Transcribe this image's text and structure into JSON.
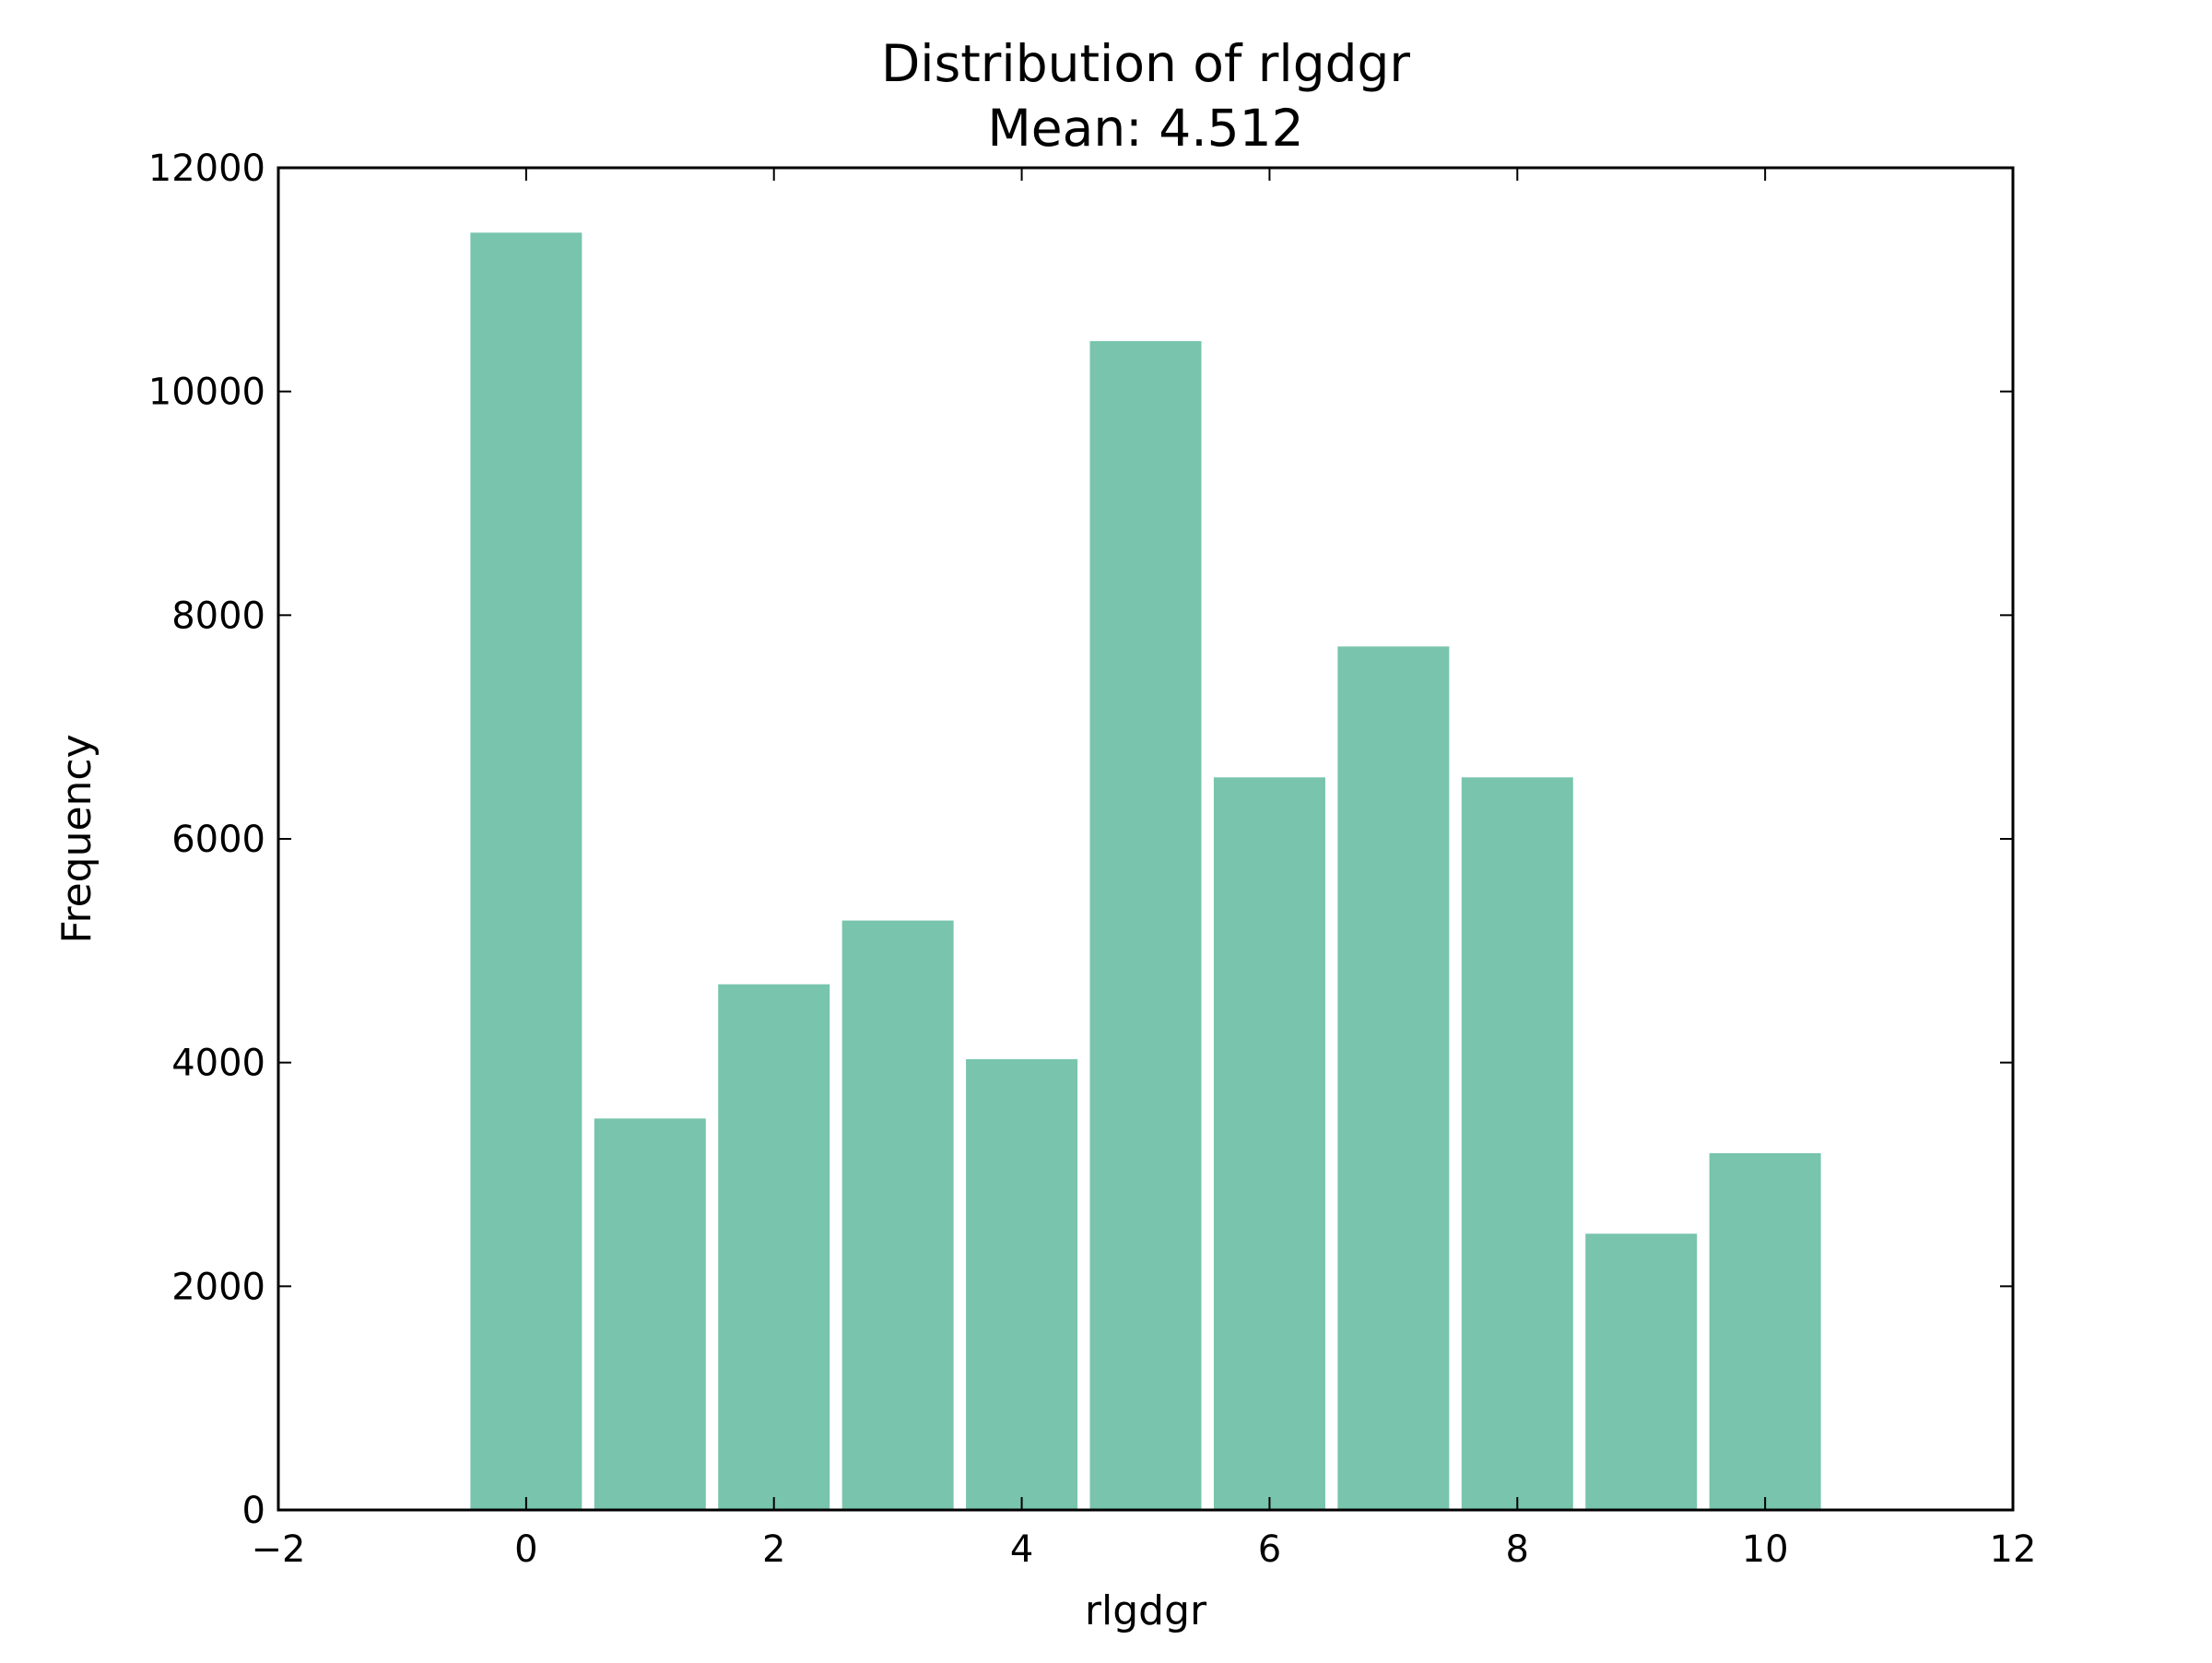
{
  "chart_data": {
    "type": "bar",
    "title": "Distribution of rlgdgr",
    "subtitle": "Mean: 4.512",
    "xlabel": "rlgdgr",
    "ylabel": "Frequency",
    "categories": [
      0,
      1,
      2,
      3,
      4,
      5,
      6,
      7,
      8,
      9,
      10
    ],
    "values": [
      11420,
      3500,
      4700,
      5270,
      4030,
      10450,
      6550,
      7720,
      6550,
      2470,
      3190
    ],
    "bar_width": 0.9,
    "xlim": [
      -2,
      12
    ],
    "ylim": [
      0,
      12000
    ],
    "xticks": [
      -2,
      0,
      2,
      4,
      6,
      8,
      10,
      12
    ],
    "xtick_labels": [
      "−2",
      "0",
      "2",
      "4",
      "6",
      "8",
      "10",
      "12"
    ],
    "yticks": [
      0,
      2000,
      4000,
      6000,
      8000,
      10000,
      12000
    ],
    "ytick_labels": [
      "0",
      "2000",
      "4000",
      "6000",
      "8000",
      "10000",
      "12000"
    ],
    "bar_color": "#78c4ad",
    "grid": false,
    "legend": "none"
  }
}
